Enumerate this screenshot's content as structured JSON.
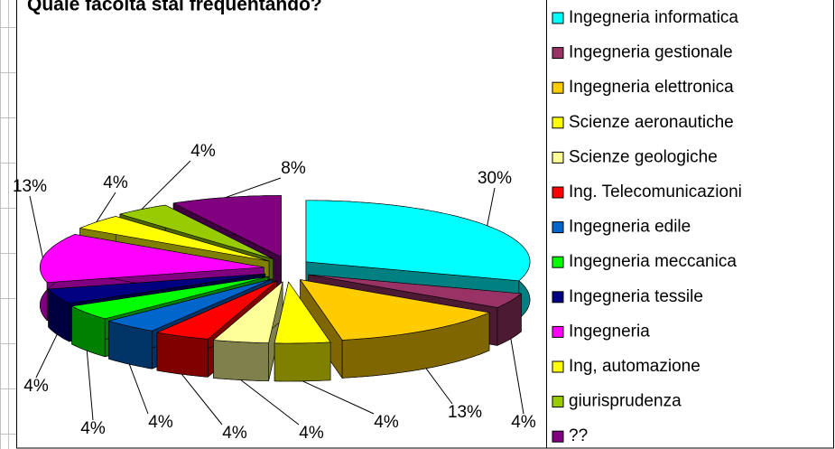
{
  "chart_data": {
    "type": "pie3d",
    "title": "Quale facoltà stai frequentando?",
    "categories": [
      "Ingegneria informatica",
      "Ingegneria gestionale",
      "Ingegneria elettronica",
      "Scienze aeronautiche",
      "Scienze geologiche",
      "Ing. Telecomunicazioni",
      "Ingegneria edile",
      "Ingegneria meccanica",
      "Ingegneria tessile",
      "Ingegneria",
      "Ing, automazione",
      "giurisprudenza",
      "??"
    ],
    "values": [
      30,
      4,
      13,
      4,
      4,
      4,
      4,
      4,
      4,
      13,
      4,
      4,
      8
    ],
    "value_labels": [
      "30%",
      "4%",
      "13%",
      "4%",
      "4%",
      "4%",
      "4%",
      "4%",
      "4%",
      "13%",
      "4%",
      "4%",
      "8%"
    ],
    "colors": [
      "#00ffff",
      "#993366",
      "#ffcc00",
      "#ffff00",
      "#ffff99",
      "#ff0000",
      "#0066cc",
      "#00ff00",
      "#000080",
      "#ff00ff",
      "#ffff00",
      "#99cc00",
      "#800080"
    ],
    "legend": "right"
  }
}
